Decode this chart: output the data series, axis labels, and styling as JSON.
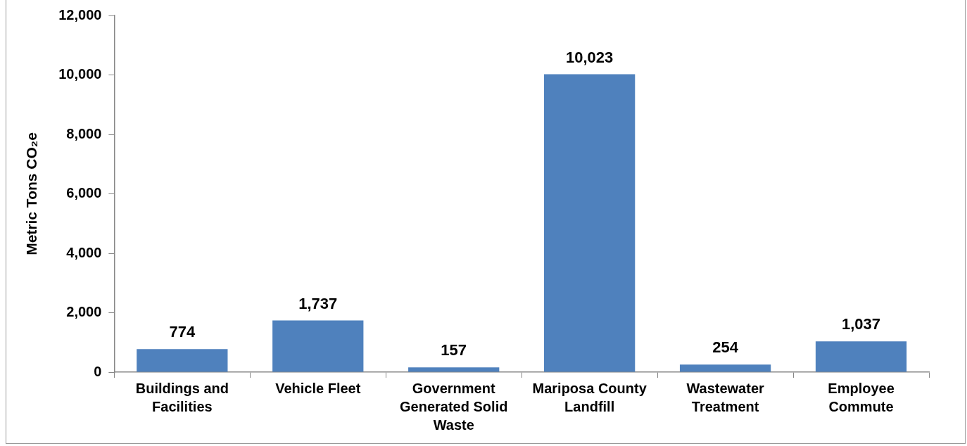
{
  "chart_data": {
    "type": "bar",
    "ylabel": "Metric Tons CO₂e",
    "categories": [
      "Buildings and Facilities",
      "Vehicle Fleet",
      "Government Generated Solid Waste",
      "Mariposa County Landfill",
      "Wastewater Treatment",
      "Employee Commute"
    ],
    "values": [
      774,
      1737,
      157,
      10023,
      254,
      1037
    ],
    "value_labels": [
      "774",
      "1,737",
      "157",
      "10,023",
      "254",
      "1,037"
    ],
    "color": "#4f81bd",
    "ylim": [
      0,
      12000
    ],
    "yticks": [
      0,
      {
        "value": 2000,
        "label": "2,000"
      },
      {
        "value": 4000,
        "label": "4,000"
      },
      {
        "value": 6000,
        "label": "6,000"
      },
      {
        "value": 8000,
        "label": "8,000"
      },
      {
        "value": 10000,
        "label": "10,000"
      },
      {
        "value": 12000,
        "label": "12,000"
      }
    ],
    "grid": false,
    "legend": false
  }
}
